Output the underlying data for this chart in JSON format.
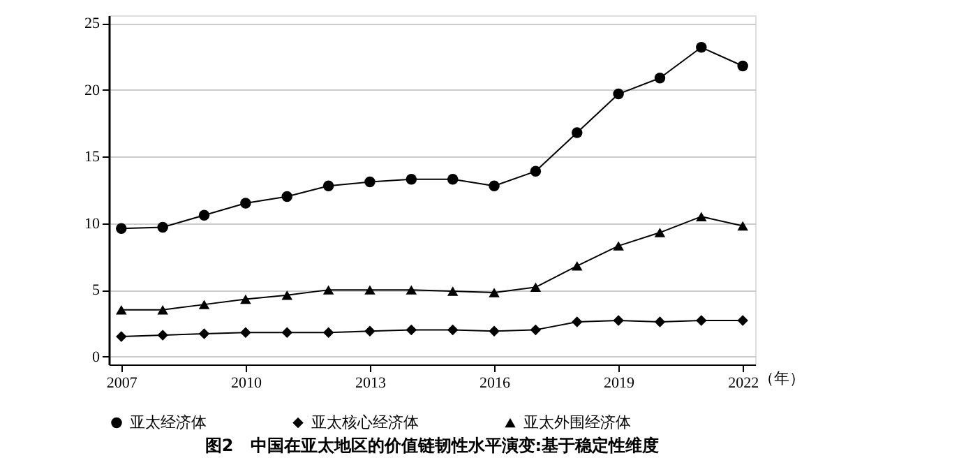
{
  "chart_data": {
    "type": "line",
    "title": "图2　中国在亚太地区的价值链韧性水平演变:基于稳定性维度",
    "xlabel": "（年）",
    "x": [
      2007,
      2008,
      2009,
      2010,
      2011,
      2012,
      2013,
      2014,
      2015,
      2016,
      2017,
      2018,
      2019,
      2020,
      2021,
      2022
    ],
    "series": [
      {
        "name": "亚太经济体",
        "color": "#000000",
        "marker": "circle",
        "values": [
          9.6,
          9.7,
          10.6,
          11.5,
          12.0,
          12.8,
          13.1,
          13.3,
          13.3,
          12.8,
          13.9,
          16.8,
          19.7,
          20.9,
          23.2,
          21.8
        ]
      },
      {
        "name": "亚太核心经济体",
        "color": "#000000",
        "marker": "diamond",
        "values": [
          1.5,
          1.6,
          1.7,
          1.8,
          1.8,
          1.8,
          1.9,
          2.0,
          2.0,
          1.9,
          2.0,
          2.6,
          2.7,
          2.6,
          2.7,
          2.7
        ]
      },
      {
        "name": "亚太外围经济体",
        "color": "#000000",
        "marker": "triangle",
        "values": [
          3.5,
          3.5,
          3.9,
          4.3,
          4.6,
          5.0,
          5.0,
          5.0,
          4.9,
          4.8,
          5.2,
          6.8,
          8.3,
          9.3,
          10.5,
          9.8
        ]
      }
    ],
    "xlim": [
      2006.7,
      2022.3
    ],
    "xticks": [
      2007,
      2010,
      2013,
      2016,
      2019,
      2022
    ],
    "ylim": [
      -0.6,
      25.6
    ],
    "yticks": [
      0,
      5,
      10,
      15,
      20,
      25
    ],
    "grid": "y",
    "legend": "bottom",
    "line_style": "solid"
  }
}
